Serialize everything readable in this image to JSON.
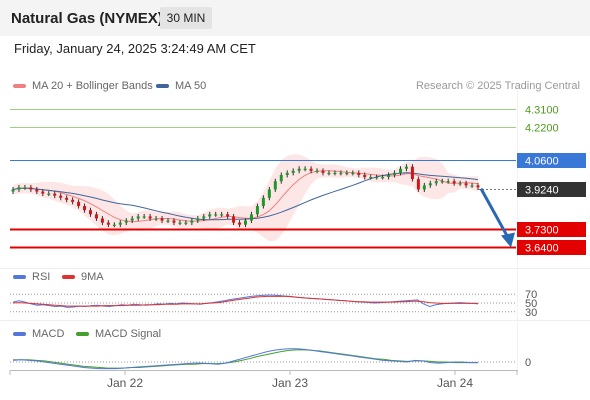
{
  "header": {
    "title": "Natural Gas (NYMEX)",
    "timeframe": "30 MIN",
    "datetime": "Friday, January 24, 2025 3:24:49 AM CET"
  },
  "legend": {
    "ma_bb": "MA 20 + Bollinger Bands",
    "ma50": "MA 50",
    "copyright": "Research © 2025 Trading Central",
    "rsi": "RSI",
    "rsi_ma": "9MA",
    "macd": "MACD",
    "macd_signal": "MACD Signal"
  },
  "colors": {
    "candle_up": "#1a9a2a",
    "candle_down": "#d51515",
    "ma20": "#f08080",
    "bb_fill": "#fde3e3",
    "ma50": "#41659a",
    "resistance": "#9fd07f",
    "pivot": "#3a78d8",
    "support": "#e30000",
    "current": "#333333",
    "arrow": "#2a68b3",
    "rsi": "#5577dd",
    "rsi_ma": "#dd3333",
    "macd": "#5577dd",
    "macd_signal": "#43a02b"
  },
  "chart_data": {
    "type": "candlestick",
    "instrument": "Natural Gas (NYMEX)",
    "timeframe": "30 MIN",
    "x_ticks": [
      "Jan 22",
      "Jan 23",
      "Jan 24"
    ],
    "ylim": [
      3.57,
      4.4
    ],
    "levels": [
      {
        "label": "4.3100",
        "value": 4.31,
        "role": "resistance"
      },
      {
        "label": "4.2200",
        "value": 4.22,
        "role": "resistance"
      },
      {
        "label": "4.0600",
        "value": 4.06,
        "role": "pivot"
      },
      {
        "label": "3.9240",
        "value": 3.924,
        "role": "current"
      },
      {
        "label": "3.7300",
        "value": 3.73,
        "role": "support"
      },
      {
        "label": "3.6400",
        "value": 3.64,
        "role": "support"
      }
    ],
    "closes": [
      3.92,
      3.93,
      3.93,
      3.92,
      3.91,
      3.9,
      3.9,
      3.89,
      3.88,
      3.87,
      3.86,
      3.84,
      3.82,
      3.8,
      3.78,
      3.76,
      3.75,
      3.75,
      3.76,
      3.77,
      3.78,
      3.79,
      3.79,
      3.78,
      3.78,
      3.77,
      3.77,
      3.76,
      3.76,
      3.76,
      3.77,
      3.78,
      3.79,
      3.8,
      3.8,
      3.8,
      3.79,
      3.76,
      3.75,
      3.77,
      3.8,
      3.84,
      3.88,
      3.92,
      3.96,
      3.99,
      4.0,
      4.01,
      4.02,
      4.02,
      4.01,
      4.01,
      4.0,
      4.0,
      4.0,
      4.0,
      4.0,
      4.0,
      3.99,
      3.98,
      3.98,
      3.98,
      3.98,
      3.99,
      4.0,
      4.02,
      4.03,
      3.97,
      3.92,
      3.94,
      3.95,
      3.96,
      3.96,
      3.96,
      3.95,
      3.95,
      3.94,
      3.94,
      3.93
    ],
    "forecast": {
      "from": 3.924,
      "to": 3.64
    },
    "rsi": {
      "levels": [
        70,
        50,
        30
      ],
      "values": [
        52,
        55,
        52,
        48,
        45,
        46,
        44,
        42,
        43,
        40,
        41,
        43,
        42,
        44,
        45,
        43,
        42,
        44,
        46,
        45,
        47,
        46,
        45,
        46,
        48,
        47,
        49,
        48,
        50,
        49,
        48,
        47,
        49,
        51,
        53,
        55,
        58,
        60,
        62,
        64,
        66,
        67,
        68,
        68,
        67,
        66,
        65,
        63,
        62,
        61,
        60,
        59,
        58,
        57,
        56,
        55,
        54,
        53,
        52,
        51,
        50,
        51,
        52,
        53,
        54,
        55,
        56,
        57,
        48,
        42,
        46,
        48,
        49,
        50,
        51,
        50,
        49,
        48
      ]
    },
    "rsi_ma": [
      50,
      51,
      50,
      49,
      48,
      47,
      46,
      45,
      44,
      43,
      43,
      43,
      43,
      43,
      43,
      44,
      44,
      44,
      44,
      45,
      45,
      45,
      46,
      46,
      46,
      47,
      47,
      47,
      48,
      48,
      48,
      48,
      49,
      50,
      51,
      53,
      55,
      57,
      59,
      61,
      63,
      64,
      65,
      65,
      65,
      65,
      64,
      63,
      62,
      61,
      60,
      59,
      58,
      57,
      56,
      55,
      54,
      53,
      53,
      52,
      52,
      52,
      52,
      52,
      53,
      53,
      54,
      54,
      53,
      51,
      50,
      49,
      49,
      49,
      49,
      49,
      49,
      49
    ],
    "macd": {
      "zero_label": "0",
      "macd": [
        0.003,
        0.004,
        0.003,
        0.002,
        0.0,
        -0.002,
        -0.004,
        -0.006,
        -0.008,
        -0.01,
        -0.011,
        -0.012,
        -0.012,
        -0.012,
        -0.011,
        -0.01,
        -0.009,
        -0.008,
        -0.007,
        -0.006,
        -0.005,
        -0.004,
        -0.003,
        -0.002,
        -0.002,
        -0.003,
        -0.004,
        -0.002,
        0.002,
        0.006,
        0.01,
        0.014,
        0.018,
        0.021,
        0.023,
        0.024,
        0.024,
        0.023,
        0.021,
        0.019,
        0.017,
        0.015,
        0.013,
        0.011,
        0.009,
        0.007,
        0.005,
        0.003,
        0.002,
        0.001,
        0.0,
        0.003,
        0.002,
        -0.001,
        -0.002,
        -0.001,
        0.0,
        0.0,
        -0.001,
        -0.001
      ],
      "signal": [
        0.004,
        0.004,
        0.004,
        0.003,
        0.002,
        0.0,
        -0.002,
        -0.004,
        -0.006,
        -0.008,
        -0.009,
        -0.01,
        -0.011,
        -0.011,
        -0.011,
        -0.01,
        -0.01,
        -0.009,
        -0.008,
        -0.007,
        -0.006,
        -0.005,
        -0.004,
        -0.004,
        -0.003,
        -0.003,
        -0.003,
        -0.002,
        0.0,
        0.003,
        0.006,
        0.01,
        0.013,
        0.016,
        0.019,
        0.021,
        0.022,
        0.022,
        0.021,
        0.02,
        0.018,
        0.016,
        0.014,
        0.012,
        0.01,
        0.008,
        0.006,
        0.005,
        0.003,
        0.002,
        0.001,
        0.002,
        0.002,
        0.001,
        0.0,
        0.0,
        -0.001,
        -0.001,
        -0.001,
        -0.001
      ]
    }
  }
}
